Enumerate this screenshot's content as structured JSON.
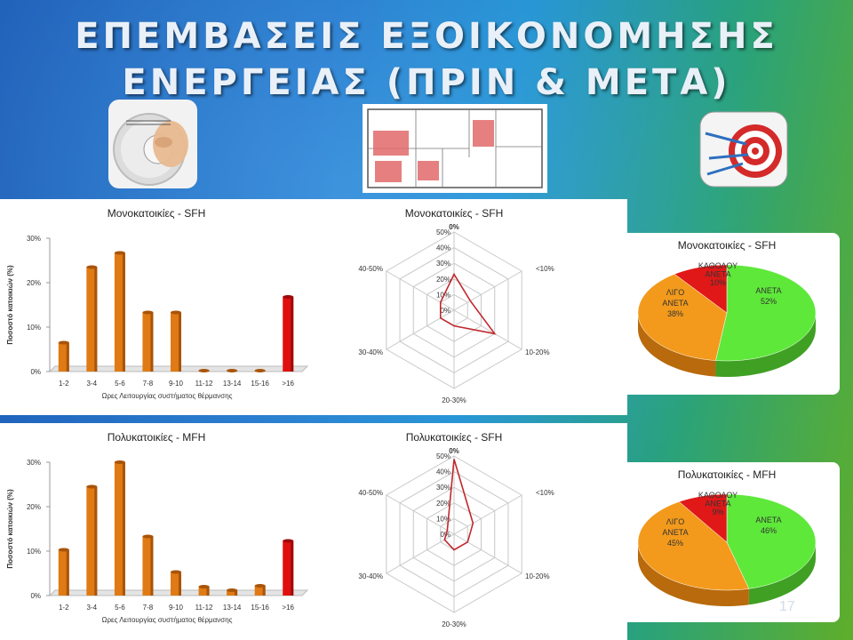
{
  "slide": {
    "title_line1": "ΕΠΕΜΒΑΣΕΙΣ ΕΞΟΙΚΟΝΟΜΗΣΗΣ",
    "title_line2": "ΕΝΕΡΓΕΙΑΣ  (ΠΡΙΝ & ΜΕΤΑ)",
    "page_number": "17",
    "icons": [
      "thermostat-icon",
      "floor-plan-icon",
      "target-icon"
    ]
  },
  "chart_data": [
    {
      "type": "bar",
      "title": "Μονοκατοικίες - SFH",
      "xlabel": "Ωρες Λειτουργίας συστήματος θέρμανσης",
      "ylabel": "Ποσοστό κατοικιών (%)",
      "categories": [
        "1-2",
        "3-4",
        "5-6",
        "7-8",
        "9-10",
        "11-12",
        "13-14",
        "15-16",
        ">16"
      ],
      "values": [
        6.5,
        23.5,
        26.7,
        13.3,
        13.3,
        0.2,
        0.2,
        0.2,
        16.8
      ],
      "yticks": [
        "0%",
        "10%",
        "20%",
        "30%"
      ],
      "ylim": [
        0,
        30
      ],
      "colors": [
        "#e07a14",
        "#e07a14",
        "#e07a14",
        "#e07a14",
        "#e07a14",
        "#e07a14",
        "#e07a14",
        "#e07a14",
        "#e01010"
      ]
    },
    {
      "type": "radar",
      "title": "Μονοκατοικίες - SFH",
      "axes": [
        "0%",
        "<10%",
        "10-20%",
        "20-30%",
        "30-40%",
        "40-50%"
      ],
      "values": [
        23,
        12,
        30,
        10,
        10,
        10
      ],
      "rticks": [
        "0%",
        "10%",
        "20%",
        "30%",
        "40%",
        "50%"
      ],
      "rmax": 50,
      "color": "#c0282d"
    },
    {
      "type": "pie",
      "title": "Μονοκατοικίες - SFH",
      "slices": [
        {
          "label": "ΑΝΕΤΑ",
          "value": 52,
          "value_label": "52%",
          "color": "#5ee83a"
        },
        {
          "label": "ΛΙΓΟ ΑΝΕΤΑ",
          "value": 38,
          "value_label": "38%",
          "color": "#f39a1c"
        },
        {
          "label": "ΚΑΘΟΛΟΥ ΑΝΕΤΑ",
          "value": 10,
          "value_label": "10%",
          "color": "#e01818"
        }
      ]
    },
    {
      "type": "bar",
      "title": "Πολυκατοικίες - MFH",
      "xlabel": "Ωρες Λειτουργίας συστήματος θέρμανσης",
      "ylabel": "Ποσοστό κατοικιών (%)",
      "categories": [
        "1-2",
        "3-4",
        "5-6",
        "7-8",
        "9-10",
        "11-12",
        "13-14",
        "15-16",
        ">16"
      ],
      "values": [
        10.3,
        24.5,
        30,
        13.3,
        5.3,
        2.0,
        1.2,
        2.2,
        12.3
      ],
      "yticks": [
        "0%",
        "10%",
        "20%",
        "30%"
      ],
      "ylim": [
        0,
        30
      ],
      "colors": [
        "#e07a14",
        "#e07a14",
        "#e07a14",
        "#e07a14",
        "#e07a14",
        "#e07a14",
        "#e07a14",
        "#e07a14",
        "#e01010"
      ]
    },
    {
      "type": "radar",
      "title": "Πολυκατοικίες - SFH",
      "axes": [
        "0%",
        "<10%",
        "10-20%",
        "20-30%",
        "30-40%",
        "40-50%"
      ],
      "values": [
        48,
        14,
        10,
        10,
        7,
        5
      ],
      "rticks": [
        "0%",
        "10%",
        "20%",
        "30%",
        "40%",
        "50%"
      ],
      "rmax": 50,
      "color": "#c0282d"
    },
    {
      "type": "pie",
      "title": "Πολυκατοικίες - MFH",
      "slices": [
        {
          "label": "ΑΝΕΤΑ",
          "value": 46,
          "value_label": "46%",
          "color": "#5ee83a"
        },
        {
          "label": "ΛΙΓΟ ΑΝΕΤΑ",
          "value": 45,
          "value_label": "45%",
          "color": "#f39a1c"
        },
        {
          "label": "ΚΑΘΟΛΟΥ ΑΝΕΤΑ",
          "value": 9,
          "value_label": "9%",
          "color": "#e01818"
        }
      ]
    }
  ]
}
